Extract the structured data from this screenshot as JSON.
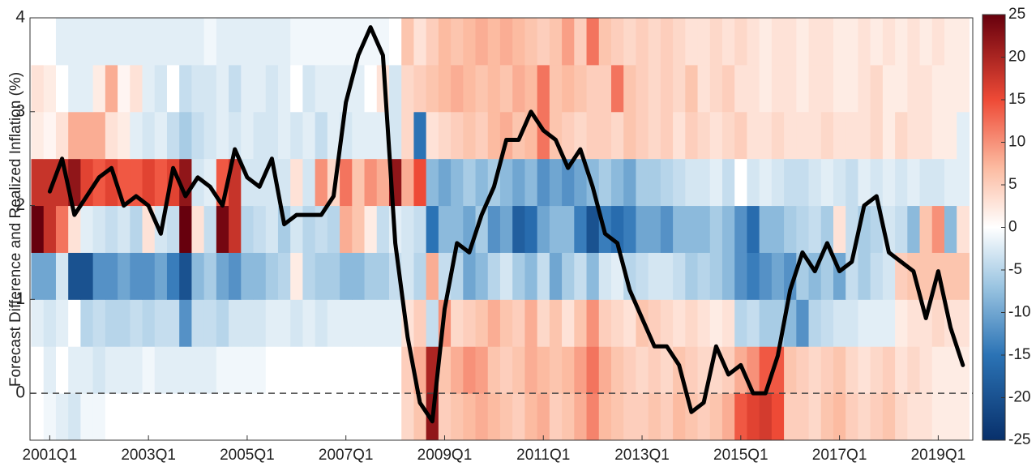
{
  "chart_data": {
    "type": "heatmap_line",
    "ylabel": "Forecast Difference and Realized Inflation (%)",
    "xlim": [
      2000.6,
      2019.7
    ],
    "xticks": [
      {
        "value": 2001,
        "label": "2001Q1"
      },
      {
        "value": 2003,
        "label": "2003Q1"
      },
      {
        "value": 2005,
        "label": "2005Q1"
      },
      {
        "value": 2007,
        "label": "2007Q1"
      },
      {
        "value": 2009,
        "label": "2009Q1"
      },
      {
        "value": 2011,
        "label": "2011Q1"
      },
      {
        "value": 2013,
        "label": "2013Q1"
      },
      {
        "value": 2015,
        "label": "2015Q1"
      },
      {
        "value": 2017,
        "label": "2017Q1"
      },
      {
        "value": 2019,
        "label": "2019Q1"
      }
    ],
    "ylim": [
      -0.5,
      4
    ],
    "yticks": [
      0,
      1,
      2,
      3,
      4
    ],
    "hline": 0,
    "x": [
      2000.75,
      2001,
      2001.25,
      2001.5,
      2001.75,
      2002,
      2002.25,
      2002.5,
      2002.75,
      2003,
      2003.25,
      2003.5,
      2003.75,
      2004,
      2004.25,
      2004.5,
      2004.75,
      2005,
      2005.25,
      2005.5,
      2005.75,
      2006,
      2006.25,
      2006.5,
      2006.75,
      2007,
      2007.25,
      2007.5,
      2007.75,
      2008,
      2008.25,
      2008.5,
      2008.75,
      2009,
      2009.25,
      2009.5,
      2009.75,
      2010,
      2010.25,
      2010.5,
      2010.75,
      2011,
      2011.25,
      2011.5,
      2011.75,
      2012,
      2012.25,
      2012.5,
      2012.75,
      2013,
      2013.25,
      2013.5,
      2013.75,
      2014,
      2014.25,
      2014.5,
      2014.75,
      2015,
      2015.25,
      2015.5,
      2015.75,
      2016,
      2016.25,
      2016.5,
      2016.75,
      2017,
      2017.25,
      2017.5,
      2017.75,
      2018,
      2018.25,
      2018.5,
      2018.75,
      2019,
      2019.25,
      2019.5
    ],
    "y_bins": [
      -0.5,
      0,
      0.5,
      1,
      1.5,
      2,
      2.5,
      3,
      3.5,
      4
    ],
    "z": [
      [
        0,
        -1,
        -2,
        -3,
        -1,
        -1,
        0,
        0,
        0,
        0,
        0,
        0,
        0,
        0,
        0,
        0,
        0,
        0,
        0,
        0,
        0,
        0,
        0,
        0,
        0,
        0,
        0,
        0,
        0,
        0,
        4,
        6,
        22,
        5,
        6,
        7,
        8,
        7,
        6,
        5,
        7,
        8,
        5,
        6,
        8,
        11,
        7,
        6,
        5,
        5,
        6,
        5,
        7,
        6,
        5,
        6,
        8,
        14,
        16,
        17,
        15,
        5,
        5,
        4,
        6,
        7,
        5,
        4,
        5,
        6,
        4,
        3,
        3,
        2,
        2,
        2,
        2
      ],
      [
        0,
        -2,
        0,
        -2,
        -2,
        -3,
        -2,
        -2,
        -2,
        -1,
        -2,
        -2,
        -2,
        -2,
        -2,
        -1,
        -1,
        -1,
        -1,
        0,
        0,
        0,
        0,
        0,
        0,
        0,
        0,
        0,
        0,
        0,
        5,
        8,
        20,
        6,
        8,
        10,
        9,
        6,
        5,
        6,
        8,
        7,
        6,
        7,
        9,
        12,
        8,
        6,
        5,
        4,
        5,
        4,
        6,
        5,
        4,
        4,
        5,
        8,
        10,
        14,
        14,
        6,
        5,
        4,
        5,
        6,
        4,
        3,
        4,
        5,
        3,
        4,
        3,
        2,
        2,
        2,
        2
      ],
      [
        -2,
        -3,
        -2,
        0,
        -5,
        -4,
        -5,
        -5,
        -4,
        -5,
        -4,
        -4,
        -12,
        -4,
        -4,
        -5,
        -3,
        -3,
        -3,
        -2,
        -2,
        -3,
        -2,
        -3,
        -2,
        -2,
        -2,
        -2,
        -2,
        -2,
        3,
        5,
        -4,
        10,
        4,
        5,
        6,
        8,
        6,
        5,
        8,
        4,
        6,
        3,
        6,
        10,
        5,
        4,
        3,
        6,
        5,
        4,
        3,
        4,
        3,
        2,
        3,
        -5,
        -4,
        -6,
        -6,
        -8,
        -12,
        -5,
        -4,
        -3,
        -3,
        -2,
        -2,
        -2,
        2,
        3,
        3,
        4,
        3,
        3,
        4
      ],
      [
        -10,
        -10,
        -3,
        -20,
        -20,
        -12,
        -12,
        -10,
        -12,
        -12,
        -10,
        -14,
        -20,
        -8,
        -6,
        -10,
        -12,
        -8,
        -8,
        -6,
        -5,
        2,
        -5,
        -6,
        -6,
        -8,
        -8,
        -6,
        -6,
        -4,
        -3,
        -5,
        8,
        -4,
        -5,
        -10,
        -8,
        -5,
        -3,
        -6,
        -8,
        -4,
        -10,
        -6,
        -4,
        -8,
        -3,
        -2,
        -5,
        -4,
        -3,
        -3,
        -4,
        -6,
        -5,
        -6,
        -8,
        -12,
        -14,
        -12,
        -10,
        -12,
        -6,
        -8,
        -6,
        -10,
        -4,
        -6,
        -4,
        -3,
        5,
        6,
        6,
        6,
        6,
        6,
        6
      ],
      [
        25,
        18,
        12,
        3,
        -2,
        -3,
        -4,
        -3,
        -5,
        3,
        -3,
        -4,
        25,
        3,
        -4,
        24,
        18,
        -5,
        -4,
        -3,
        -6,
        -3,
        -5,
        -4,
        -5,
        8,
        6,
        2,
        -4,
        -2,
        -3,
        -4,
        -15,
        -8,
        -8,
        -10,
        -6,
        -12,
        -10,
        -18,
        -16,
        -10,
        -8,
        -8,
        -14,
        -20,
        -14,
        -16,
        -14,
        -10,
        -10,
        -12,
        -8,
        -8,
        -8,
        -6,
        -8,
        -12,
        -16,
        -8,
        -8,
        -6,
        -5,
        -4,
        -6,
        3,
        -4,
        -6,
        -5,
        -3,
        -4,
        -8,
        6,
        10,
        -8,
        3,
        4
      ],
      [
        18,
        18,
        18,
        22,
        16,
        14,
        16,
        14,
        14,
        16,
        14,
        16,
        22,
        -3,
        -2,
        14,
        18,
        -3,
        -3,
        -3,
        -3,
        3,
        -3,
        10,
        4,
        12,
        6,
        10,
        8,
        22,
        8,
        15,
        -8,
        -10,
        -8,
        -6,
        -8,
        -6,
        -8,
        -10,
        -8,
        -12,
        -10,
        -12,
        -10,
        -8,
        -6,
        -8,
        -10,
        -6,
        -6,
        -5,
        -4,
        -3,
        -3,
        -2,
        -4,
        0,
        -3,
        -2,
        -3,
        -4,
        -4,
        -3,
        -2,
        -3,
        -4,
        -2,
        -3,
        -2,
        -3,
        -2,
        -3,
        -3,
        -2,
        -2,
        -2
      ],
      [
        2,
        1,
        3,
        8,
        8,
        8,
        3,
        2,
        -2,
        -3,
        -2,
        -4,
        -6,
        -4,
        -3,
        -2,
        -3,
        -2,
        -3,
        -3,
        -2,
        -3,
        -2,
        -4,
        -2,
        -3,
        -2,
        -2,
        -2,
        -3,
        4,
        -15,
        3,
        4,
        5,
        6,
        5,
        7,
        8,
        6,
        7,
        12,
        6,
        5,
        4,
        5,
        5,
        4,
        6,
        5,
        4,
        5,
        3,
        5,
        4,
        3,
        4,
        5,
        3,
        3,
        4,
        3,
        3,
        3,
        4,
        3,
        3,
        3,
        4,
        2,
        4,
        3,
        3,
        2,
        2,
        -2,
        -2
      ],
      [
        3,
        2,
        0,
        -2,
        -2,
        2,
        8,
        1,
        3,
        -2,
        -3,
        0,
        -4,
        -3,
        -3,
        -2,
        -4,
        -2,
        -2,
        -3,
        -2,
        0,
        -3,
        -2,
        -2,
        -2,
        -2,
        0,
        3,
        -3,
        4,
        5,
        6,
        7,
        8,
        7,
        6,
        7,
        6,
        8,
        7,
        12,
        6,
        7,
        6,
        5,
        5,
        12,
        6,
        5,
        4,
        5,
        4,
        6,
        3,
        4,
        5,
        3,
        3,
        2,
        3,
        3,
        2,
        3,
        3,
        2,
        2,
        3,
        4,
        2,
        2,
        3,
        3,
        2,
        2,
        2,
        2
      ],
      [
        0,
        0,
        -2,
        -2,
        -2,
        -2,
        -2,
        -2,
        -2,
        -2,
        -2,
        -2,
        -2,
        -2,
        -1,
        -2,
        -2,
        -2,
        -2,
        -2,
        -2,
        -1,
        -1,
        -1,
        -1,
        -1,
        -1,
        -1,
        -1,
        0,
        6,
        3,
        5,
        7,
        6,
        7,
        8,
        7,
        8,
        7,
        6,
        5,
        6,
        9,
        5,
        12,
        6,
        5,
        4,
        5,
        4,
        5,
        4,
        3,
        3,
        4,
        3,
        4,
        3,
        2,
        3,
        3,
        2,
        3,
        3,
        2,
        2,
        3,
        2,
        3,
        2,
        3,
        2,
        3,
        2,
        2,
        2
      ]
    ],
    "line": {
      "color": "#000000",
      "values": [
        null,
        2.15,
        2.5,
        1.9,
        2.1,
        2.3,
        2.4,
        2.0,
        2.1,
        2.0,
        1.7,
        2.4,
        2.1,
        2.3,
        2.2,
        2.0,
        2.6,
        2.3,
        2.2,
        2.5,
        1.8,
        1.9,
        1.9,
        1.9,
        2.1,
        3.1,
        3.6,
        3.9,
        3.6,
        1.6,
        0.6,
        -0.1,
        -0.3,
        0.9,
        1.6,
        1.5,
        1.9,
        2.2,
        2.7,
        2.7,
        3.0,
        2.8,
        2.7,
        2.4,
        2.6,
        2.2,
        1.7,
        1.6,
        1.1,
        0.8,
        0.5,
        0.5,
        0.3,
        -0.2,
        -0.1,
        0.5,
        0.2,
        0.3,
        0.0,
        0.0,
        0.4,
        1.1,
        1.5,
        1.3,
        1.6,
        1.3,
        1.4,
        2.0,
        2.1,
        1.5,
        1.4,
        1.3,
        0.8,
        1.3,
        0.7,
        0.3
      ]
    },
    "clim": [
      -25,
      25
    ],
    "cticks": [
      -25,
      -20,
      -15,
      -10,
      -5,
      0,
      5,
      10,
      15,
      20,
      25
    ],
    "colorscale": [
      [
        -25,
        "#08306b"
      ],
      [
        -15,
        "#2b73b5"
      ],
      [
        -7,
        "#9ac4e1"
      ],
      [
        0,
        "#ffffff"
      ],
      [
        7,
        "#fcbba1"
      ],
      [
        15,
        "#ee4a36"
      ],
      [
        25,
        "#67000d"
      ]
    ]
  }
}
